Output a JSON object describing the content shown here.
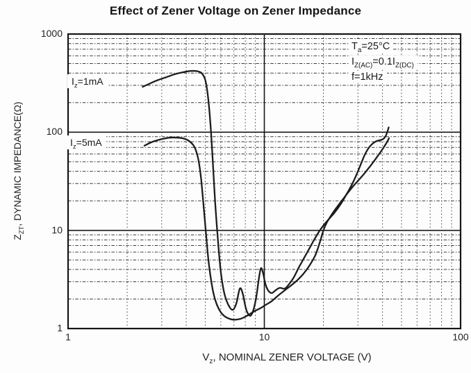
{
  "chart_data": {
    "type": "line",
    "title": "Effect of Zener Voltage on Zener Impedance",
    "x_axis": {
      "scale": "log",
      "min": 1,
      "max": 100,
      "ticks": [
        "1",
        "10",
        "100"
      ],
      "tick_values": [
        1,
        10,
        100
      ],
      "label_parts": [
        {
          "t": "V"
        },
        {
          "s": "z"
        },
        {
          "t": ", NOMINAL ZENER VOLTAGE (V)"
        }
      ]
    },
    "y_axis": {
      "scale": "log",
      "min": 1,
      "max": 1000,
      "ticks": [
        "1",
        "10",
        "100",
        "1000"
      ],
      "tick_values": [
        1,
        10,
        100,
        1000
      ],
      "label_parts": [
        {
          "t": "Z"
        },
        {
          "s": "ZT"
        },
        {
          "t": ", DYNAMIC IMPEDANCE(Ω)"
        }
      ]
    },
    "grid": {
      "minor": "dotted",
      "major": "solid",
      "legend": "none"
    },
    "annotations": [
      {
        "parts": [
          {
            "t": "T"
          },
          {
            "s": "a"
          },
          {
            "t": "=25°C"
          }
        ]
      },
      {
        "parts": [
          {
            "t": "I"
          },
          {
            "s": "Z(AC)"
          },
          {
            "t": "=0.1I"
          },
          {
            "s": "Z(DC)"
          }
        ]
      },
      {
        "parts": [
          {
            "t": "f=1kHz"
          }
        ]
      }
    ],
    "series": [
      {
        "name": "Iz=1mA",
        "label_parts": [
          {
            "t": "I"
          },
          {
            "s": "z"
          },
          {
            "t": "=1mA"
          }
        ],
        "points": [
          [
            2.4,
            290
          ],
          [
            2.6,
            312
          ],
          [
            2.85,
            338
          ],
          [
            3.15,
            362
          ],
          [
            3.5,
            390
          ],
          [
            3.85,
            408
          ],
          [
            4.2,
            420
          ],
          [
            4.55,
            418
          ],
          [
            4.8,
            398
          ],
          [
            5.0,
            340
          ],
          [
            5.15,
            240
          ],
          [
            5.3,
            130
          ],
          [
            5.45,
            55
          ],
          [
            5.6,
            21
          ],
          [
            5.8,
            8
          ],
          [
            6.0,
            3.8
          ],
          [
            6.25,
            2.3
          ],
          [
            6.55,
            1.75
          ],
          [
            6.9,
            1.55
          ],
          [
            7.2,
            1.8
          ],
          [
            7.5,
            2.55
          ],
          [
            7.75,
            2.3
          ],
          [
            8.0,
            1.7
          ],
          [
            8.2,
            1.45
          ],
          [
            8.5,
            1.35
          ],
          [
            8.8,
            1.55
          ],
          [
            9.1,
            2.1
          ],
          [
            9.35,
            3.1
          ],
          [
            9.6,
            4.1
          ],
          [
            9.85,
            3.7
          ],
          [
            10.1,
            2.9
          ],
          [
            10.45,
            2.45
          ],
          [
            10.9,
            2.3
          ],
          [
            11.4,
            2.45
          ],
          [
            12.0,
            2.6
          ],
          [
            12.7,
            2.55
          ],
          [
            13.4,
            2.85
          ],
          [
            14.1,
            3.3
          ],
          [
            15.0,
            4.2
          ],
          [
            16.0,
            5.3
          ],
          [
            17.0,
            6.6
          ],
          [
            18.0,
            8.1
          ],
          [
            19.0,
            9.7
          ],
          [
            20.0,
            11.2
          ],
          [
            21.3,
            13.0
          ],
          [
            22.8,
            15.2
          ],
          [
            24.5,
            18.5
          ],
          [
            26.3,
            23.5
          ],
          [
            28.0,
            29.5
          ],
          [
            29.5,
            37.0
          ],
          [
            31.0,
            47.0
          ],
          [
            32.5,
            59.0
          ],
          [
            34.0,
            69.0
          ],
          [
            35.5,
            76.0
          ],
          [
            37.0,
            80.5
          ],
          [
            38.5,
            82.5
          ],
          [
            40.0,
            84.5
          ],
          [
            41.2,
            89.0
          ],
          [
            42.2,
            99.0
          ],
          [
            43.0,
            112.0
          ]
        ]
      },
      {
        "name": "Iz=5mA",
        "label_parts": [
          {
            "t": "I"
          },
          {
            "s": "z"
          },
          {
            "t": "=5mA"
          }
        ],
        "points": [
          [
            2.45,
            73
          ],
          [
            2.7,
            80
          ],
          [
            3.0,
            85
          ],
          [
            3.3,
            88
          ],
          [
            3.6,
            88
          ],
          [
            3.9,
            86
          ],
          [
            4.15,
            81
          ],
          [
            4.4,
            71
          ],
          [
            4.6,
            54
          ],
          [
            4.75,
            35
          ],
          [
            4.9,
            18
          ],
          [
            5.05,
            9
          ],
          [
            5.2,
            4.8
          ],
          [
            5.4,
            2.8
          ],
          [
            5.6,
            2.0
          ],
          [
            5.85,
            1.6
          ],
          [
            6.15,
            1.38
          ],
          [
            6.55,
            1.27
          ],
          [
            7.0,
            1.23
          ],
          [
            7.5,
            1.25
          ],
          [
            8.0,
            1.32
          ],
          [
            8.5,
            1.42
          ],
          [
            9.0,
            1.52
          ],
          [
            9.6,
            1.62
          ],
          [
            10.2,
            1.75
          ],
          [
            10.9,
            1.9
          ],
          [
            11.7,
            2.15
          ],
          [
            12.6,
            2.42
          ],
          [
            13.6,
            2.72
          ],
          [
            14.7,
            3.1
          ],
          [
            15.8,
            3.6
          ],
          [
            17.0,
            4.4
          ],
          [
            18.2,
            5.6
          ],
          [
            19.2,
            7.6
          ],
          [
            20.0,
            10.0
          ],
          [
            20.8,
            12.0
          ],
          [
            21.8,
            14.0
          ],
          [
            23.2,
            16.8
          ],
          [
            24.8,
            20.0
          ],
          [
            26.5,
            23.8
          ],
          [
            28.2,
            27.8
          ],
          [
            30.0,
            32.0
          ],
          [
            32.0,
            37.0
          ],
          [
            34.0,
            43.0
          ],
          [
            36.0,
            50.0
          ],
          [
            38.0,
            58.0
          ],
          [
            40.0,
            67.0
          ],
          [
            41.8,
            77.0
          ],
          [
            43.2,
            87.0
          ]
        ]
      }
    ],
    "colors": {
      "curve": "#1c1c1c",
      "grid_minor": "#3a3a3a",
      "grid_major": "#161616",
      "border": "#161616",
      "text": "#1e1e1e",
      "background": "#fdfdfd"
    }
  }
}
